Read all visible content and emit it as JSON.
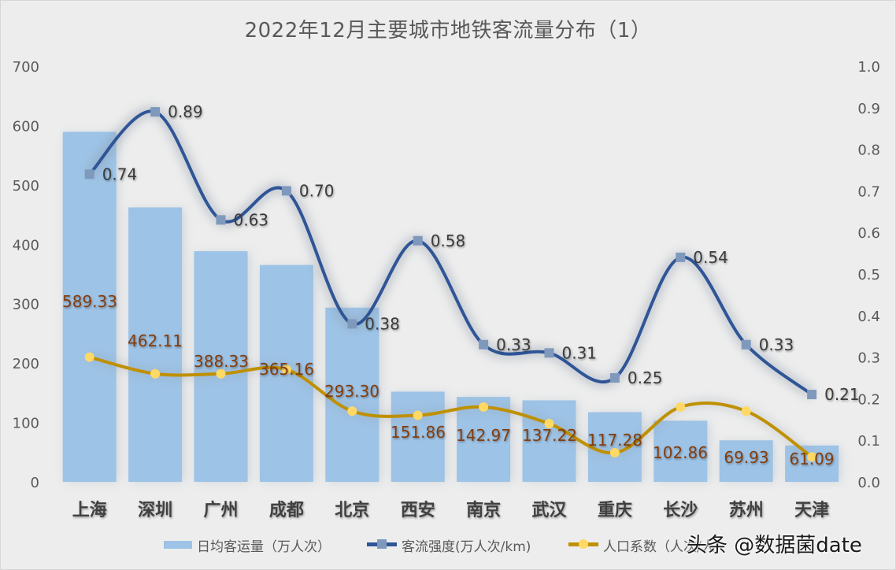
{
  "chart_data": {
    "type": "bar",
    "title": "2022年12月主要城市地铁客流量分布（1）",
    "categories": [
      "上海",
      "深圳",
      "广州",
      "成都",
      "北京",
      "西安",
      "南京",
      "武汉",
      "重庆",
      "长沙",
      "苏州",
      "天津"
    ],
    "series": [
      {
        "name": "日均客运量（万人次）",
        "type": "bar",
        "axis": "left",
        "color": "#9dc3e6",
        "values": [
          589.33,
          462.11,
          388.33,
          365.16,
          293.3,
          151.86,
          142.97,
          137.22,
          117.28,
          102.86,
          69.93,
          61.09
        ]
      },
      {
        "name": "客流强度(万人次/km)",
        "type": "line",
        "axis": "right",
        "color": "#2f5597",
        "marker": "square",
        "values": [
          0.74,
          0.89,
          0.63,
          0.7,
          0.38,
          0.58,
          0.33,
          0.31,
          0.25,
          0.54,
          0.33,
          0.21
        ]
      },
      {
        "name": "人口系数（人次/人）",
        "type": "line",
        "axis": "right",
        "color": "#bf9000",
        "marker": "circle",
        "values": [
          0.3,
          0.26,
          0.26,
          0.27,
          0.17,
          0.16,
          0.18,
          0.14,
          0.07,
          0.18,
          0.17,
          0.06
        ]
      }
    ],
    "xlabel": "",
    "ylabel_left": "",
    "ylabel_right": "",
    "ylim_left": [
      0,
      700
    ],
    "ylim_right": [
      0.0,
      1.0
    ],
    "yticks_left": [
      "0",
      "100",
      "200",
      "300",
      "400",
      "500",
      "600",
      "700"
    ],
    "yticks_right": [
      "0.0",
      "0.1",
      "0.2",
      "0.3",
      "0.4",
      "0.5",
      "0.6",
      "0.7",
      "0.8",
      "0.9",
      "1.0"
    ],
    "bar_labels": [
      "589.33",
      "462.11",
      "388.33",
      "365.16",
      "293.30",
      "151.86",
      "142.97",
      "137.22",
      "117.28",
      "102.86",
      "69.93",
      "61.09"
    ],
    "intensity_labels": [
      "0.74",
      "0.89",
      "0.63",
      "0.70",
      "0.38",
      "0.58",
      "0.33",
      "0.31",
      "0.25",
      "0.54",
      "0.33",
      "0.21"
    ],
    "grid": false,
    "legend_position": "bottom"
  },
  "legend": {
    "items": [
      {
        "label": "日均客运量（万人次）"
      },
      {
        "label": "客流强度(万人次/km)"
      },
      {
        "label": "人口系数（人次/人）"
      }
    ]
  },
  "watermark": "头条 @数据菌date"
}
